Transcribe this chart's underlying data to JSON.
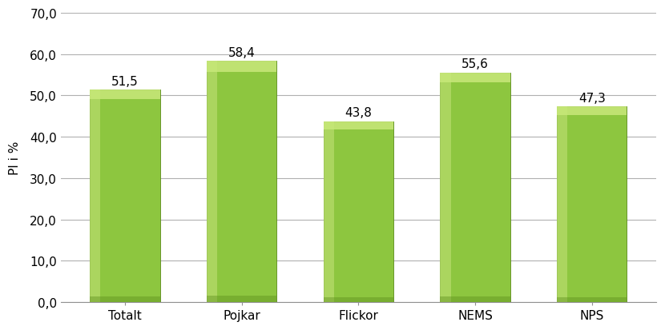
{
  "categories": [
    "Totalt",
    "Pojkar",
    "Flickor",
    "NEMS",
    "NPS"
  ],
  "values": [
    51.5,
    58.4,
    43.8,
    55.6,
    47.3
  ],
  "bar_color_main": "#8DC63F",
  "bar_color_light": "#B8DC6E",
  "bar_color_dark": "#5A8A1A",
  "bar_color_top": "#C8E87A",
  "ylabel": "PI i %",
  "ylim": [
    0,
    70
  ],
  "yticks": [
    0.0,
    10.0,
    20.0,
    30.0,
    40.0,
    50.0,
    60.0,
    70.0
  ],
  "ytick_labels": [
    "0,0",
    "10,0",
    "20,0",
    "30,0",
    "40,0",
    "50,0",
    "60,0",
    "70,0"
  ],
  "background_color": "#ffffff",
  "grid_color": "#b0b0b0",
  "label_fontsize": 11,
  "tick_fontsize": 11,
  "bar_width": 0.6,
  "value_label_fontsize": 11
}
